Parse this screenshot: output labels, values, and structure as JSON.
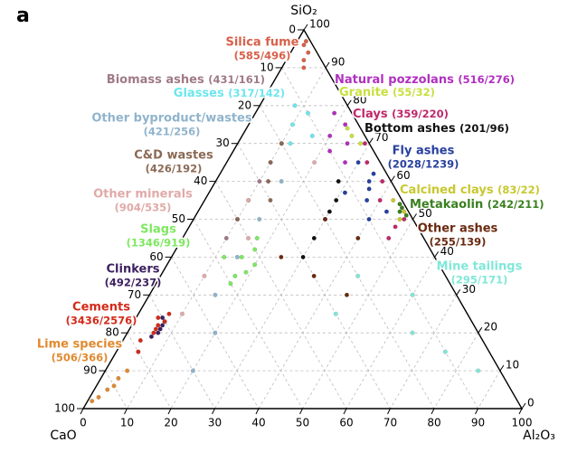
{
  "chart_data": {
    "type": "ternary",
    "panel_label": "a",
    "axis_labels": {
      "top": "SiO₂",
      "left": "CaO",
      "right": "Al₂O₃"
    },
    "ticks": [
      0,
      10,
      20,
      30,
      40,
      50,
      60,
      70,
      80,
      90,
      100
    ],
    "grid": true,
    "series": [
      {
        "name": "Silica fume",
        "count_label": "(585/496)",
        "color": "#d9604a",
        "sio2": [
          97,
          94,
          92,
          96,
          90
        ],
        "cao": [
          1,
          2,
          4,
          2,
          5
        ],
        "al2o3": [
          2,
          4,
          4,
          2,
          5
        ]
      },
      {
        "name": "Biomass ashes",
        "count_label": "(431/161)",
        "color": "#a07a85",
        "sio2": [
          60,
          55,
          70,
          50,
          65,
          45
        ],
        "cao": [
          30,
          35,
          20,
          40,
          25,
          45
        ],
        "al2o3": [
          10,
          10,
          10,
          10,
          10,
          10
        ]
      },
      {
        "name": "Glasses",
        "count_label": "(317/142)",
        "color": "#6ee6ee",
        "sio2": [
          75,
          72,
          78,
          80,
          70
        ],
        "cao": [
          15,
          12,
          10,
          12,
          18
        ],
        "al2o3": [
          10,
          16,
          12,
          8,
          12
        ]
      },
      {
        "name": "Other byproduct/wastes",
        "count_label": "(421/256)",
        "color": "#90b4cc",
        "sio2": [
          50,
          40,
          60,
          30,
          20,
          10
        ],
        "cao": [
          35,
          45,
          25,
          55,
          60,
          70
        ],
        "al2o3": [
          15,
          15,
          15,
          15,
          20,
          20
        ]
      },
      {
        "name": "C&D wastes",
        "count_label": "(426/192)",
        "color": "#8b6a55",
        "sio2": [
          65,
          55,
          70,
          60,
          50
        ],
        "cao": [
          25,
          30,
          20,
          28,
          40
        ],
        "al2o3": [
          10,
          15,
          10,
          12,
          10
        ]
      },
      {
        "name": "Other minerals",
        "count_label": "(904/535)",
        "color": "#e0aaa8",
        "sio2": [
          55,
          45,
          35,
          65,
          25,
          15
        ],
        "cao": [
          35,
          40,
          55,
          15,
          65,
          80
        ],
        "al2o3": [
          10,
          15,
          10,
          20,
          10,
          5
        ]
      },
      {
        "name": "Slags",
        "count_label": "(1346/919)",
        "color": "#7ee860",
        "sio2": [
          40,
          38,
          35,
          42,
          36,
          40,
          33,
          45
        ],
        "cao": [
          44,
          42,
          48,
          40,
          45,
          48,
          50,
          38
        ],
        "al2o3": [
          16,
          20,
          17,
          18,
          19,
          12,
          17,
          17
        ]
      },
      {
        "name": "Clinkers",
        "count_label": "(492/237)",
        "color": "#3d2060",
        "sio2": [
          22,
          20,
          23,
          21,
          19,
          24
        ],
        "cao": [
          71,
          73,
          70,
          72,
          75,
          70
        ],
        "al2o3": [
          7,
          7,
          7,
          7,
          6,
          6
        ]
      },
      {
        "name": "Cements",
        "count_label": "(3436/2576)",
        "color": "#d42a1a",
        "sio2": [
          23,
          22,
          20,
          25,
          18,
          21,
          24,
          15
        ],
        "cao": [
          70,
          72,
          74,
          68,
          78,
          73,
          71,
          80
        ],
        "al2o3": [
          7,
          6,
          6,
          7,
          4,
          6,
          5,
          5
        ]
      },
      {
        "name": "Lime species",
        "count_label": "(506/366)",
        "color": "#e08a30",
        "sio2": [
          5,
          8,
          3,
          10,
          2,
          6
        ],
        "cao": [
          92,
          88,
          95,
          85,
          97,
          90
        ],
        "al2o3": [
          3,
          4,
          2,
          5,
          1,
          4
        ]
      },
      {
        "name": "Natural pozzolans",
        "count_label": "(516/276)",
        "color": "#b030c0",
        "sio2": [
          70,
          72,
          68,
          75,
          65,
          78
        ],
        "cao": [
          5,
          8,
          10,
          3,
          8,
          4
        ],
        "al2o3": [
          25,
          20,
          22,
          22,
          27,
          18
        ]
      },
      {
        "name": "Granite",
        "count_label": "(55/32)",
        "color": "#c8e040",
        "sio2": [
          72,
          70,
          74
        ],
        "cao": [
          3,
          2,
          3
        ],
        "al2o3": [
          25,
          28,
          23
        ]
      },
      {
        "name": "Clays",
        "count_label": "(359/220)",
        "color": "#c0286a",
        "sio2": [
          60,
          55,
          65,
          50,
          48,
          70,
          45
        ],
        "cao": [
          2,
          5,
          3,
          2,
          5,
          1,
          8
        ],
        "al2o3": [
          38,
          40,
          32,
          48,
          47,
          29,
          47
        ]
      },
      {
        "name": "Bottom ashes",
        "count_label": "(201/96)",
        "color": "#111111",
        "sio2": [
          55,
          50,
          45,
          60,
          40,
          52
        ],
        "cao": [
          15,
          20,
          25,
          12,
          30,
          18
        ],
        "al2o3": [
          30,
          30,
          30,
          28,
          30,
          30
        ]
      },
      {
        "name": "Fly ashes",
        "count_label": "(2028/1239)",
        "color": "#2840a0",
        "sio2": [
          60,
          55,
          62,
          50,
          58,
          65,
          52,
          57
        ],
        "cao": [
          5,
          8,
          3,
          10,
          6,
          5,
          5,
          12
        ],
        "al2o3": [
          35,
          37,
          35,
          40,
          36,
          30,
          43,
          31
        ]
      },
      {
        "name": "Calcined clays",
        "count_label": "(83/22)",
        "color": "#c8c830",
        "sio2": [
          55,
          52,
          50
        ],
        "cao": [
          2,
          1,
          3
        ],
        "al2o3": [
          43,
          47,
          47
        ]
      },
      {
        "name": "Metakaolin",
        "count_label": "(242/211)",
        "color": "#3a8020",
        "sio2": [
          53,
          52,
          54,
          51
        ],
        "cao": [
          1,
          2,
          1,
          1
        ],
        "al2o3": [
          46,
          46,
          45,
          48
        ]
      },
      {
        "name": "Other ashes",
        "count_label": "(255/139)",
        "color": "#6a2a10",
        "sio2": [
          45,
          35,
          50,
          30,
          40
        ],
        "cao": [
          15,
          30,
          20,
          25,
          35
        ],
        "al2o3": [
          40,
          35,
          30,
          45,
          25
        ]
      },
      {
        "name": "Mine tailings",
        "count_label": "(295/171)",
        "color": "#80e8d8",
        "sio2": [
          30,
          20,
          35,
          15,
          25,
          10
        ],
        "cao": [
          10,
          15,
          20,
          10,
          30,
          5
        ],
        "al2o3": [
          60,
          65,
          45,
          75,
          45,
          85
        ]
      }
    ]
  }
}
